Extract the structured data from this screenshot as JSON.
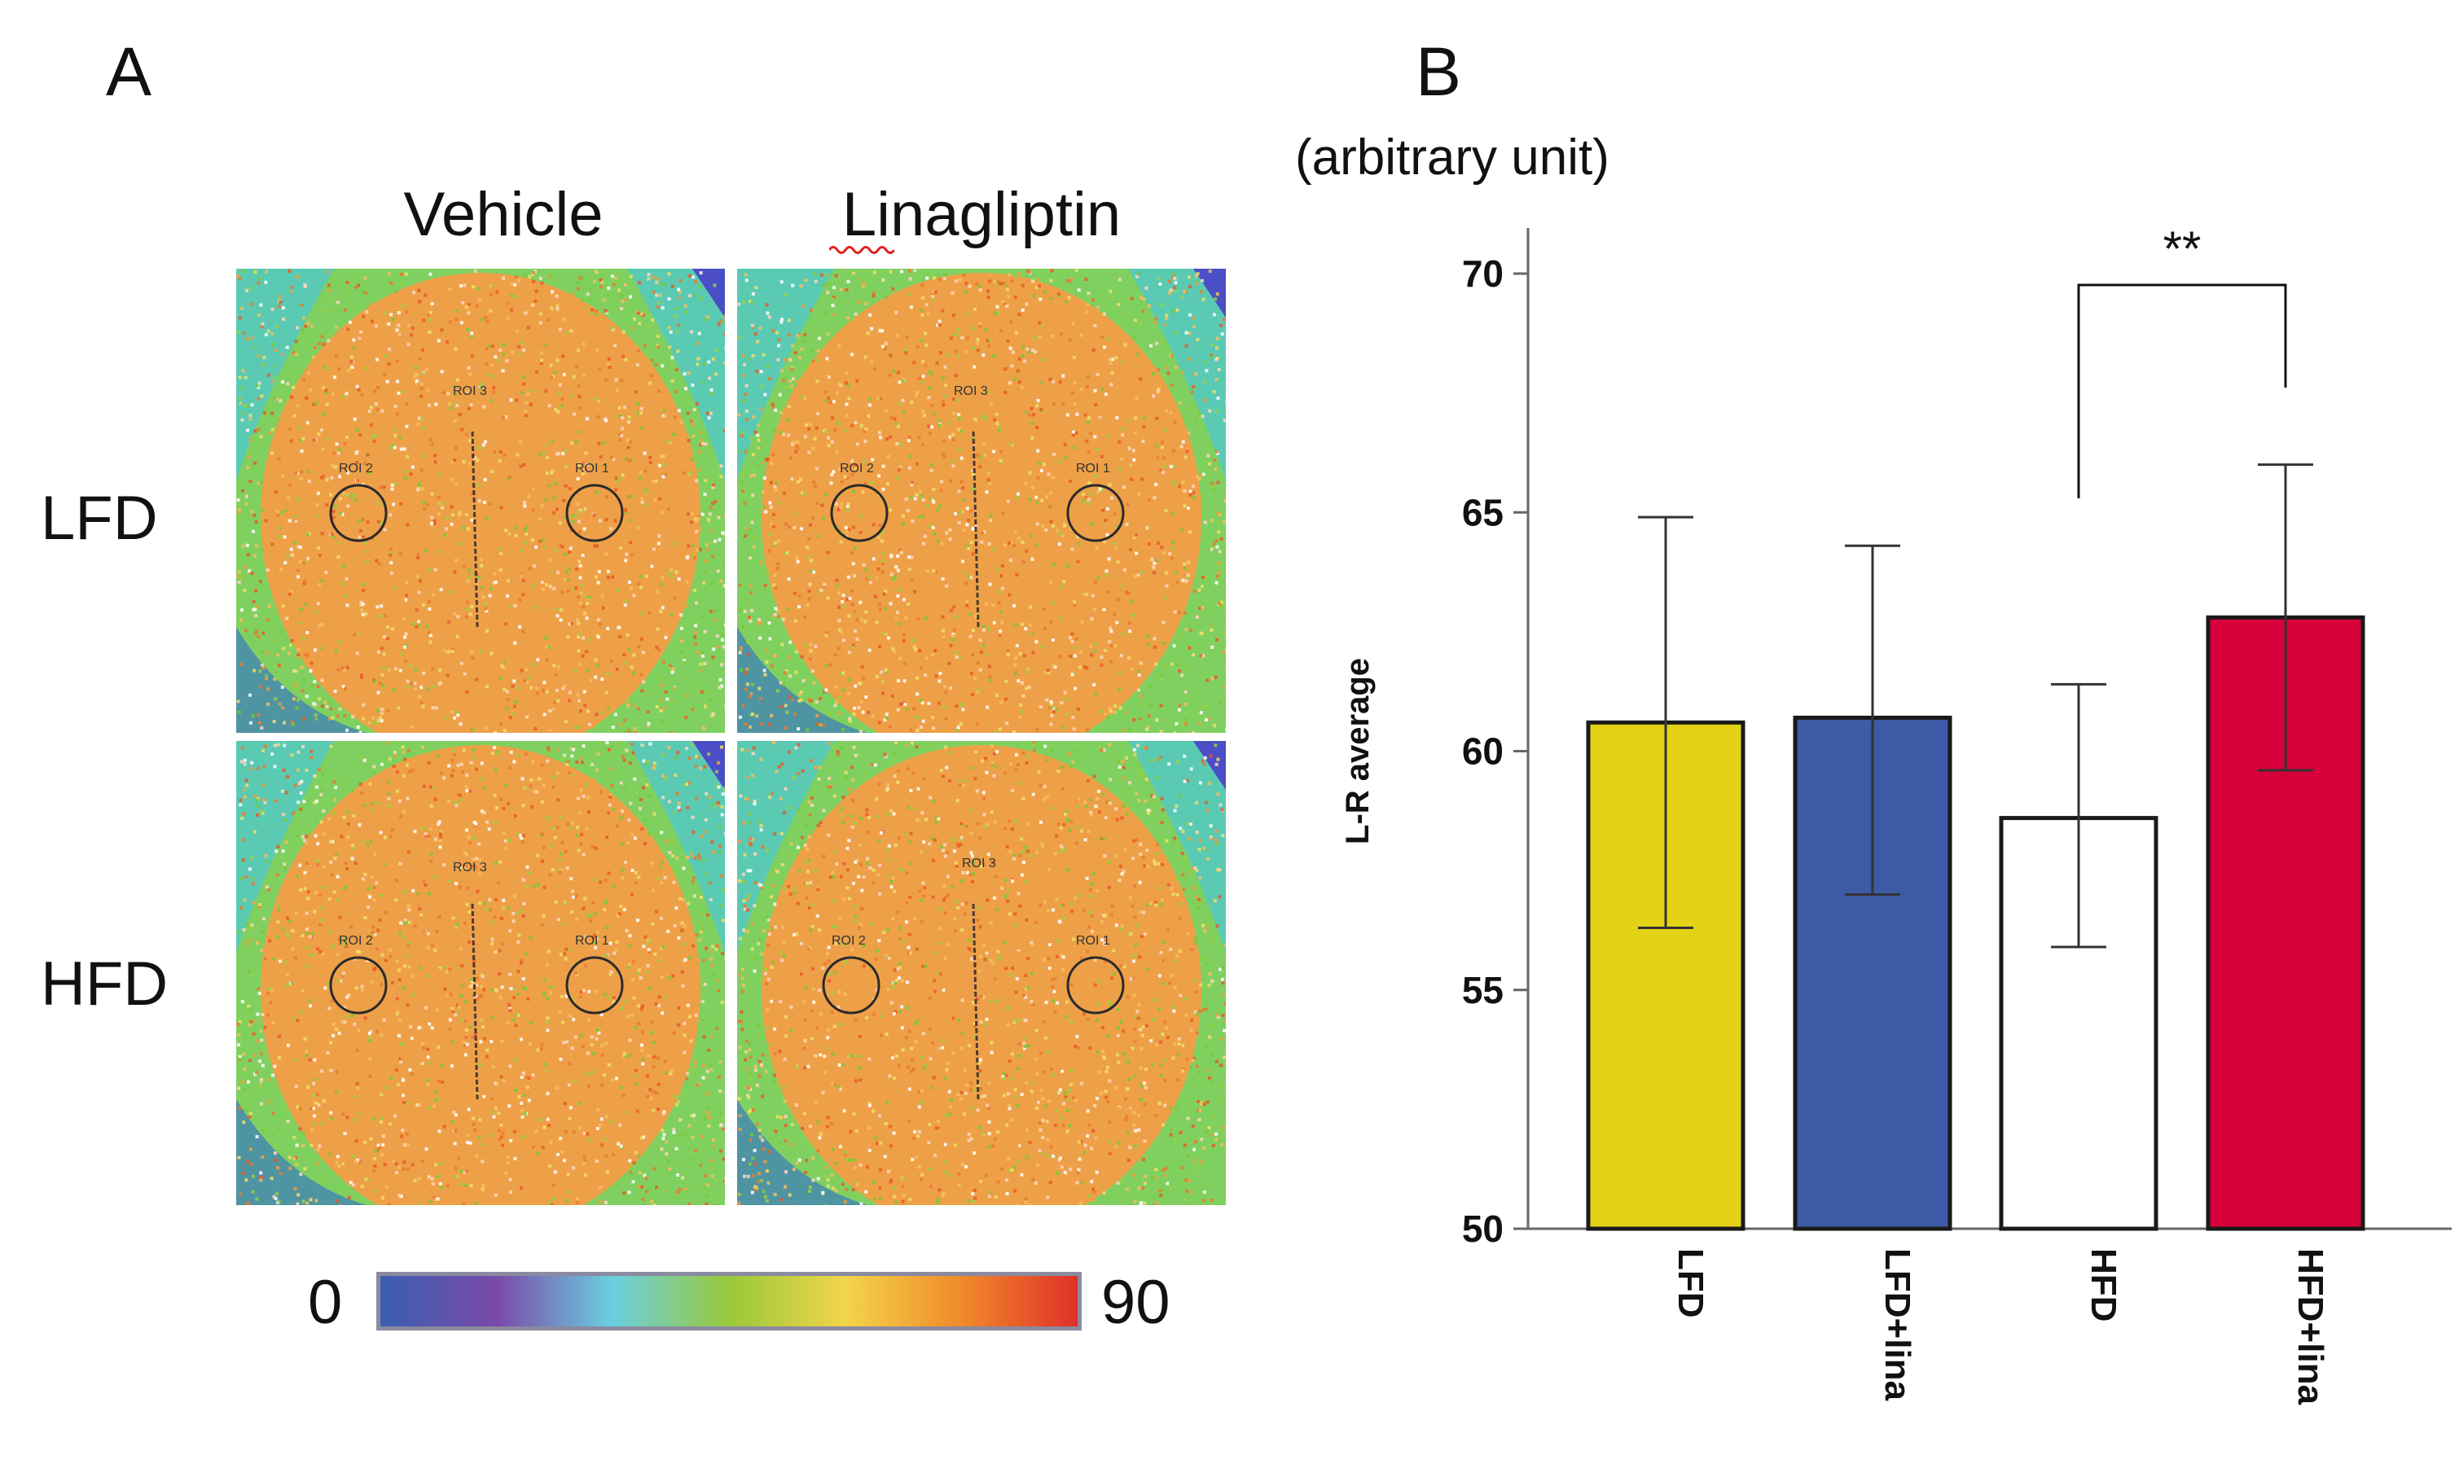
{
  "panel_a": {
    "label": "A",
    "columns": [
      "Vehicle",
      "Linagliptin"
    ],
    "rows": [
      "LFD",
      "HFD"
    ],
    "roi_labels": [
      "ROI 2",
      "ROI 3",
      "ROI 1"
    ],
    "colorbar": {
      "min_label": "0",
      "max_label": "90",
      "colors": [
        "#3a5fb0",
        "#7a4aa8",
        "#6ad0e0",
        "#9ac83a",
        "#f2d44a",
        "#f08a2a",
        "#e0302a"
      ]
    }
  },
  "panel_b": {
    "label": "B",
    "unit_label": "(arbitrary unit)"
  },
  "chart_data": {
    "type": "bar",
    "title": "",
    "xlabel": "",
    "ylabel": "L-R average",
    "ylim": [
      50,
      70
    ],
    "yticks": [
      50,
      55,
      60,
      65,
      70
    ],
    "categories": [
      "LFD",
      "LFD+lina",
      "HFD",
      "HFD+lina"
    ],
    "values": [
      60.6,
      60.7,
      58.6,
      62.8
    ],
    "error_upper": [
      64.9,
      64.3,
      61.4,
      66.0
    ],
    "error_lower": [
      56.3,
      57.0,
      55.9,
      59.6
    ],
    "colors": [
      "#e4d216",
      "#3d5aa6",
      "#ffffff",
      "#d8003a"
    ],
    "significance": {
      "from_category": "HFD",
      "to_category": "HFD+lina",
      "label": "**"
    }
  }
}
